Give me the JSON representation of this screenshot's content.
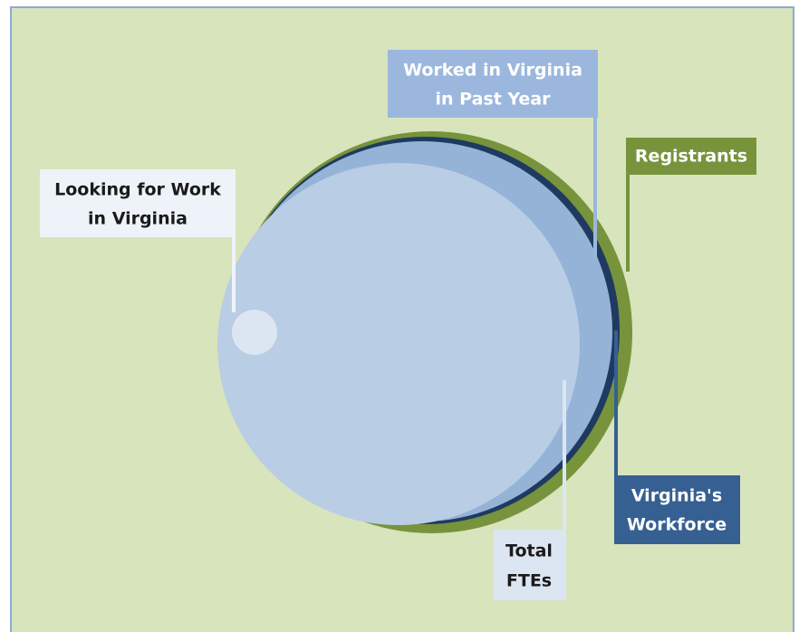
{
  "labels": {
    "worked": [
      "Worked in Virginia",
      "in Past Year"
    ],
    "registrants": [
      "Registrants"
    ],
    "looking": [
      "Looking for Work",
      "in Virginia"
    ],
    "workforce": [
      "Virginia's",
      "Workforce"
    ],
    "ftes": [
      "Total",
      "FTEs"
    ]
  }
}
